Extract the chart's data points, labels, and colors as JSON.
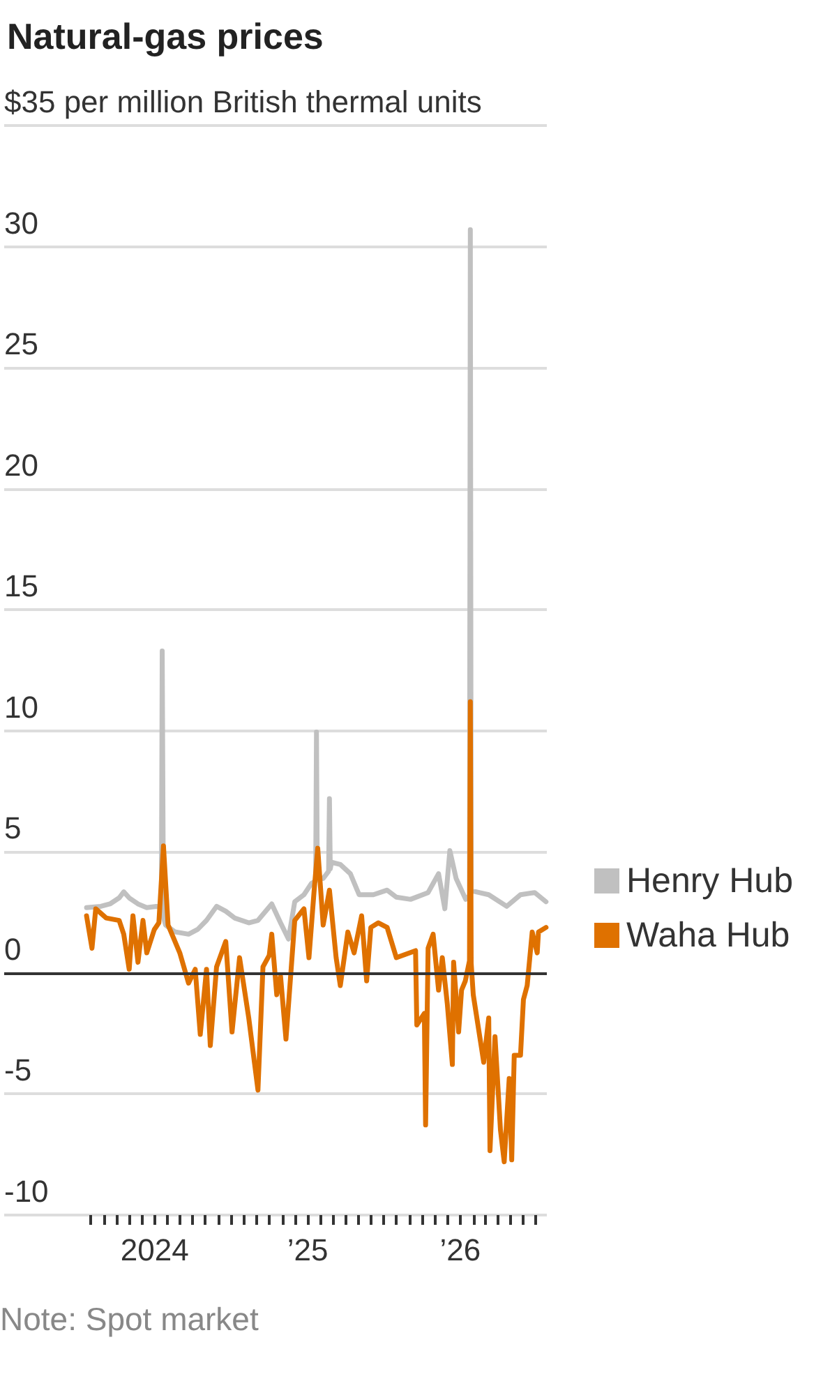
{
  "chart_data": {
    "type": "line",
    "title": "Natural-gas prices",
    "annotations": [
      "Note: Spot market"
    ],
    "xlim": [
      "2023-01-06",
      "2026-07-27"
    ],
    "xticks": [
      {
        "value": "2023-08-01",
        "label": null
      },
      {
        "value": "2023-09-01",
        "label": null
      },
      {
        "value": "2023-10-01",
        "label": null
      },
      {
        "value": "2023-11-01",
        "label": null
      },
      {
        "value": "2023-12-01",
        "label": null
      },
      {
        "value": "2024-01-01",
        "label": "2024"
      },
      {
        "value": "2024-02-01",
        "label": null
      },
      {
        "value": "2024-03-01",
        "label": null
      },
      {
        "value": "2024-04-01",
        "label": null
      },
      {
        "value": "2024-05-01",
        "label": null
      },
      {
        "value": "2024-06-01",
        "label": null
      },
      {
        "value": "2024-07-01",
        "label": null
      },
      {
        "value": "2024-08-01",
        "label": null
      },
      {
        "value": "2024-09-01",
        "label": null
      },
      {
        "value": "2024-10-01",
        "label": null
      },
      {
        "value": "2024-11-01",
        "label": null
      },
      {
        "value": "2024-12-01",
        "label": null
      },
      {
        "value": "2025-01-01",
        "label": "’25"
      },
      {
        "value": "2025-02-01",
        "label": null
      },
      {
        "value": "2025-03-01",
        "label": null
      },
      {
        "value": "2025-04-01",
        "label": null
      },
      {
        "value": "2025-05-01",
        "label": null
      },
      {
        "value": "2025-06-01",
        "label": null
      },
      {
        "value": "2025-07-01",
        "label": null
      },
      {
        "value": "2025-08-01",
        "label": null
      },
      {
        "value": "2025-09-01",
        "label": null
      },
      {
        "value": "2025-10-01",
        "label": null
      },
      {
        "value": "2025-11-01",
        "label": null
      },
      {
        "value": "2025-12-01",
        "label": null
      },
      {
        "value": "2026-01-01",
        "label": "’26"
      },
      {
        "value": "2026-02-01",
        "label": null
      },
      {
        "value": "2026-03-01",
        "label": null
      },
      {
        "value": "2026-04-01",
        "label": null
      },
      {
        "value": "2026-05-01",
        "label": null
      },
      {
        "value": "2026-06-01",
        "label": null
      },
      {
        "value": "2026-07-01",
        "label": null
      }
    ],
    "ylim": [
      -10,
      35
    ],
    "yticks": [
      -10,
      -5,
      0,
      5,
      10,
      15,
      20,
      25,
      30,
      {
        "value": 35,
        "label": "$35 per million British thermal units"
      }
    ],
    "grid": "y",
    "legend": "right",
    "marker": "none",
    "line_style": "solid",
    "ref_lines": [
      {
        "axis": "y",
        "value": 0,
        "color": "#333333"
      }
    ],
    "series": [
      {
        "name": "Henry Hub",
        "color": "#c0c0c0",
        "x": [
          "2023-07-22",
          "2023-08-25",
          "2023-09-16",
          "2023-10-08",
          "2023-10-19",
          "2023-11-01",
          "2023-11-22",
          "2023-12-13",
          "2024-01-05",
          "2024-01-17",
          "2024-01-19",
          "2024-01-22",
          "2024-01-27",
          "2024-02-18",
          "2024-03-22",
          "2024-04-13",
          "2024-05-04",
          "2024-05-28",
          "2024-06-19",
          "2024-07-10",
          "2024-08-13",
          "2024-09-04",
          "2024-10-07",
          "2024-10-28",
          "2024-11-16",
          "2024-12-01",
          "2024-12-23",
          "2025-01-10",
          "2025-01-20",
          "2025-01-22",
          "2025-01-24",
          "2025-02-07",
          "2025-02-20",
          "2025-02-22",
          "2025-02-24",
          "2025-02-27",
          "2025-03-20",
          "2025-04-13",
          "2025-05-04",
          "2025-06-07",
          "2025-07-10",
          "2025-08-01",
          "2025-09-04",
          "2025-10-16",
          "2025-11-10",
          "2025-11-25",
          "2025-12-07",
          "2025-12-22",
          "2026-01-14",
          "2026-01-23",
          "2026-01-25",
          "2026-01-27",
          "2026-02-15",
          "2026-03-10",
          "2026-04-22",
          "2026-05-25",
          "2026-06-28",
          "2026-07-25"
        ],
        "values": [
          2.7,
          2.75,
          2.85,
          3.1,
          3.35,
          3.1,
          2.85,
          2.7,
          2.75,
          2.7,
          13.3,
          2.3,
          1.98,
          1.7,
          1.6,
          1.8,
          2.17,
          2.75,
          2.55,
          2.27,
          2.07,
          2.17,
          2.85,
          2.07,
          1.4,
          2.94,
          3.23,
          3.7,
          3.8,
          9.95,
          3.9,
          3.9,
          4.2,
          7.2,
          4.3,
          4.57,
          4.48,
          4.1,
          3.23,
          3.23,
          3.42,
          3.13,
          3.04,
          3.32,
          4.1,
          2.65,
          5.05,
          3.9,
          3.04,
          3.2,
          30.7,
          3.4,
          3.32,
          3.23,
          2.75,
          3.23,
          3.32,
          2.94
        ]
      },
      {
        "name": "Waha Hub",
        "color": "#df7100",
        "x": [
          "2023-07-22",
          "2023-08-04",
          "2023-08-13",
          "2023-09-07",
          "2023-10-08",
          "2023-10-19",
          "2023-11-01",
          "2023-11-10",
          "2023-11-22",
          "2023-12-04",
          "2023-12-13",
          "2023-12-31",
          "2024-01-11",
          "2024-01-22",
          "2024-02-02",
          "2024-03-01",
          "2024-03-22",
          "2024-04-07",
          "2024-04-19",
          "2024-05-04",
          "2024-05-13",
          "2024-05-28",
          "2024-06-19",
          "2024-07-04",
          "2024-07-22",
          "2024-08-13",
          "2024-09-04",
          "2024-09-16",
          "2024-10-01",
          "2024-10-07",
          "2024-10-19",
          "2024-10-28",
          "2024-11-10",
          "2024-11-22",
          "2024-12-01",
          "2024-12-23",
          "2025-01-04",
          "2025-01-16",
          "2025-01-25",
          "2025-02-07",
          "2025-02-22",
          "2025-03-10",
          "2025-03-20",
          "2025-04-07",
          "2025-04-22",
          "2025-05-10",
          "2025-05-22",
          "2025-06-01",
          "2025-06-19",
          "2025-07-10",
          "2025-08-01",
          "2025-09-16",
          "2025-09-19",
          "2025-10-07",
          "2025-10-10",
          "2025-10-16",
          "2025-10-28",
          "2025-11-10",
          "2025-11-19",
          "2025-12-01",
          "2025-12-13",
          "2025-12-16",
          "2025-12-28",
          "2026-01-04",
          "2026-01-13",
          "2026-01-23",
          "2026-01-25",
          "2026-01-27",
          "2026-02-01",
          "2026-02-26",
          "2026-03-10",
          "2026-03-13",
          "2026-03-25",
          "2026-04-07",
          "2026-04-16",
          "2026-04-28",
          "2026-05-04",
          "2026-05-10",
          "2026-05-25",
          "2026-06-01",
          "2026-06-10",
          "2026-06-22",
          "2026-07-04",
          "2026-07-07",
          "2026-07-25"
        ],
        "values": [
          2.36,
          1.02,
          2.65,
          2.27,
          2.17,
          1.6,
          0.15,
          2.36,
          0.44,
          2.17,
          0.83,
          1.79,
          2.07,
          5.25,
          1.98,
          0.83,
          -0.42,
          0.15,
          -2.54,
          0.15,
          -3.0,
          0.25,
          1.3,
          -2.44,
          0.63,
          -1.86,
          -4.84,
          0.25,
          0.73,
          1.6,
          -0.9,
          -0.13,
          -2.73,
          0.06,
          2.17,
          2.65,
          0.63,
          3.32,
          5.15,
          1.98,
          3.42,
          0.63,
          -0.52,
          1.69,
          0.83,
          2.36,
          -0.33,
          1.88,
          2.07,
          1.88,
          0.63,
          0.92,
          -2.15,
          -1.67,
          -6.28,
          1.02,
          1.6,
          -0.71,
          0.63,
          -1.29,
          -3.78,
          0.44,
          -2.44,
          -0.71,
          -0.33,
          0.5,
          11.2,
          0.4,
          -0.9,
          -3.69,
          -1.86,
          -7.34,
          -2.63,
          -6.47,
          -7.8,
          -4.36,
          -7.72,
          -3.4,
          -3.4,
          -1.1,
          -0.52,
          1.69,
          0.83,
          1.69,
          1.88
        ]
      }
    ]
  }
}
